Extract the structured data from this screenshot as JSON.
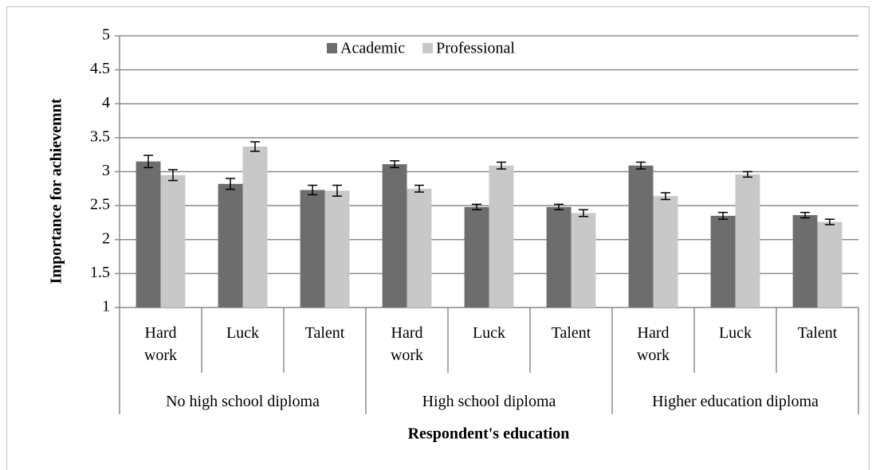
{
  "chart_data": {
    "type": "bar",
    "x_label": "Respondent's education",
    "y_label": "Importance for achievemnt",
    "categories": [
      "Hard work",
      "Luck",
      "Talent",
      "Hard work",
      "Luck",
      "Talent",
      "Hard work",
      "Luck",
      "Talent"
    ],
    "groups": [
      "No high school diploma",
      "High school diploma",
      "Higher education diploma"
    ],
    "series": [
      {
        "name": "Academic",
        "color": "#6d6d6d",
        "values": [
          3.15,
          2.82,
          2.73,
          3.11,
          2.48,
          2.48,
          3.09,
          2.35,
          2.36
        ],
        "errors": [
          0.09,
          0.08,
          0.07,
          0.05,
          0.04,
          0.04,
          0.05,
          0.05,
          0.04
        ]
      },
      {
        "name": "Professional",
        "color": "#c8c8c8",
        "values": [
          2.95,
          3.37,
          2.72,
          2.75,
          3.09,
          2.39,
          2.64,
          2.96,
          2.26
        ],
        "errors": [
          0.08,
          0.07,
          0.08,
          0.05,
          0.05,
          0.05,
          0.05,
          0.04,
          0.04
        ]
      }
    ],
    "ylim": [
      1,
      5
    ],
    "yticks": [
      1,
      1.5,
      2,
      2.5,
      3,
      3.5,
      4,
      4.5,
      5
    ],
    "grid": true,
    "legend": "top"
  }
}
